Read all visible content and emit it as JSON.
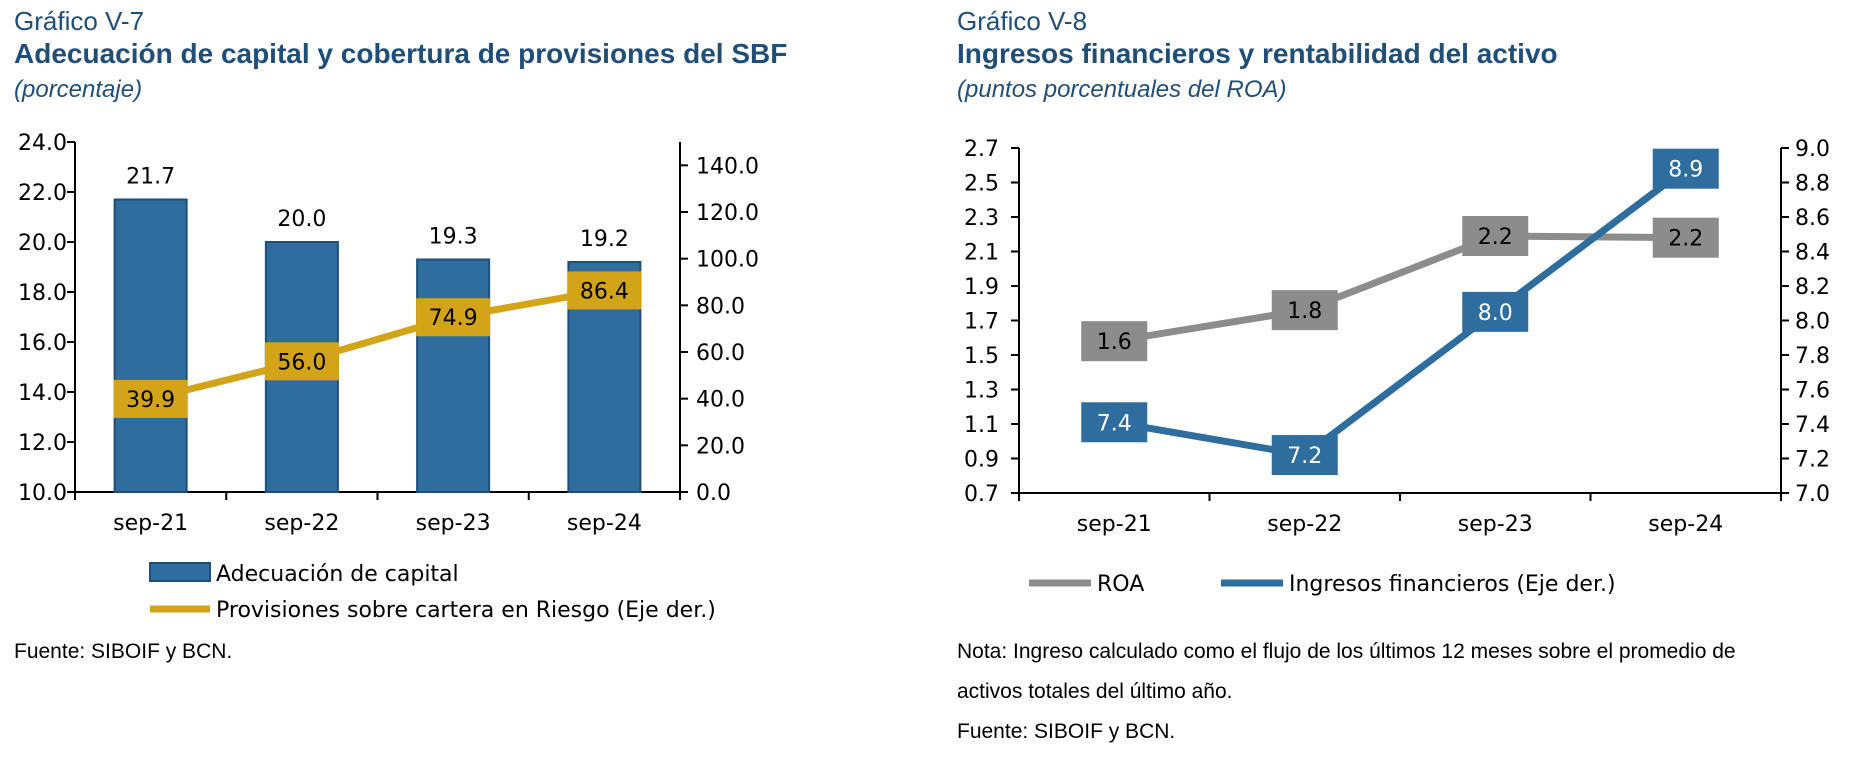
{
  "colors": {
    "heading": "#1F4E79",
    "bar": "#2E6D9E",
    "provisions": "#D4A418",
    "roa": "#8C8C8C",
    "income": "#2E6D9E",
    "axis": "#000000"
  },
  "left": {
    "chart_label": "Gráfico V-7",
    "title": "Adecuación de capital y cobertura de provisiones del SBF",
    "unit": "(porcentaje)",
    "source": "Fuente: SIBOIF y BCN."
  },
  "right": {
    "chart_label": "Gráfico V-8",
    "title": "Ingresos financieros y rentabilidad del activo",
    "unit": "(puntos porcentuales del ROA)",
    "note_line1": "Nota: Ingreso calculado como el flujo de los últimos 12 meses sobre el promedio de",
    "note_line2": "activos totales del último año.",
    "source": "Fuente: SIBOIF y BCN."
  },
  "chart_data": [
    {
      "type": "bar",
      "categories": [
        "sep-21",
        "sep-22",
        "sep-23",
        "sep-24"
      ],
      "bar_series": {
        "name": "Adecuación de capital",
        "values": [
          21.7,
          20.0,
          19.3,
          19.2
        ],
        "labels": [
          "21.7",
          "20.0",
          "19.3",
          "19.2"
        ]
      },
      "line_series": {
        "name": "Provisiones sobre cartera en Riesgo (Eje der.)",
        "values": [
          39.9,
          56.0,
          74.9,
          86.4
        ],
        "labels": [
          "39.9",
          "56.0",
          "74.9",
          "86.4"
        ]
      },
      "y_left": {
        "range": [
          10,
          24
        ],
        "ticks": [
          "10.0",
          "12.0",
          "14.0",
          "16.0",
          "18.0",
          "20.0",
          "22.0",
          "24.0"
        ]
      },
      "y_right": {
        "range": [
          0,
          150
        ],
        "ticks": [
          "0.0",
          "20.0",
          "40.0",
          "60.0",
          "80.0",
          "100.0",
          "120.0",
          "140.0"
        ]
      },
      "grid": false,
      "legend_position": "bottom"
    },
    {
      "type": "line",
      "categories": [
        "sep-21",
        "sep-22",
        "sep-23",
        "sep-24"
      ],
      "series": [
        {
          "name": "ROA",
          "axis": "left",
          "values": [
            1.58,
            1.76,
            2.19,
            2.18
          ],
          "labels": [
            "1.6",
            "1.8",
            "2.2",
            "2.2"
          ]
        },
        {
          "name": "Ingresos financieros (Eje der.)",
          "axis": "right",
          "values": [
            7.41,
            7.22,
            8.05,
            8.88
          ],
          "labels": [
            "7.4",
            "7.2",
            "8.0",
            "8.9"
          ]
        }
      ],
      "y_left": {
        "range": [
          0.7,
          2.7
        ],
        "ticks": [
          "0.7",
          "0.9",
          "1.1",
          "1.3",
          "1.5",
          "1.7",
          "1.9",
          "2.1",
          "2.3",
          "2.5",
          "2.7"
        ]
      },
      "y_right": {
        "range": [
          7.0,
          9.0
        ],
        "ticks": [
          "7.0",
          "7.2",
          "7.4",
          "7.6",
          "7.8",
          "8.0",
          "8.2",
          "8.4",
          "8.6",
          "8.8",
          "9.0"
        ]
      },
      "grid": false,
      "legend_position": "bottom"
    }
  ]
}
